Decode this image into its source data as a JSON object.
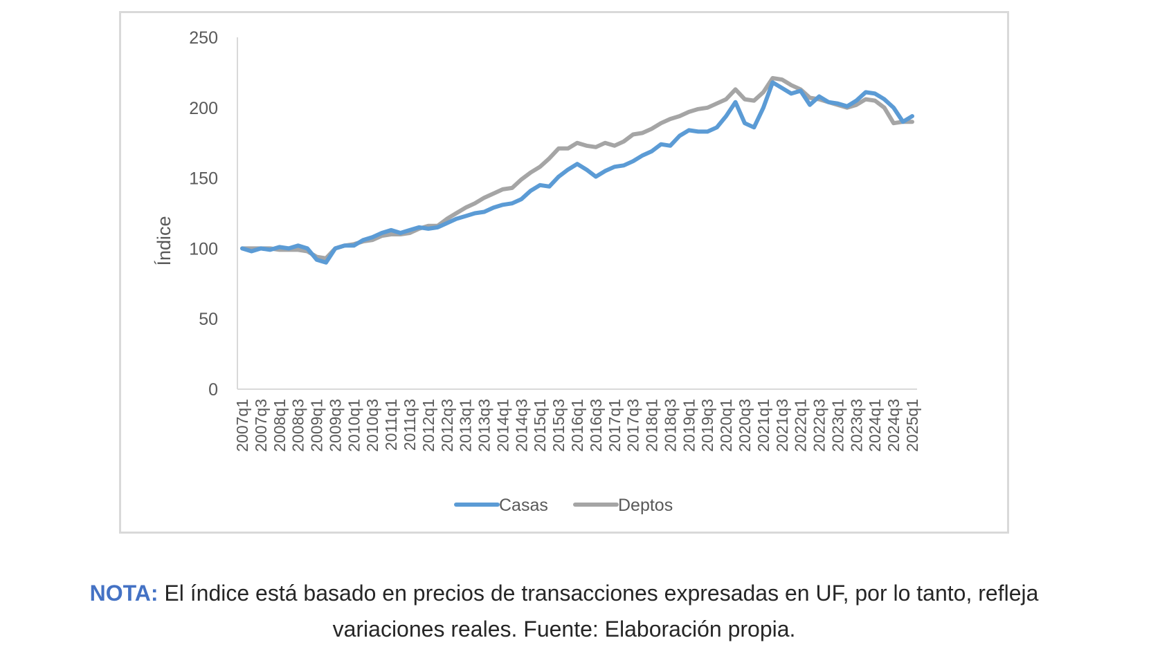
{
  "chart_data": {
    "type": "line",
    "title": "",
    "xlabel": "",
    "ylabel": "Índice",
    "ylim": [
      0,
      250
    ],
    "yticks": [
      "0",
      "50",
      "100",
      "150",
      "200",
      "250"
    ],
    "grid": false,
    "legend_position": "bottom",
    "x": [
      "2007q1",
      "2007q2",
      "2007q3",
      "2007q4",
      "2008q1",
      "2008q2",
      "2008q3",
      "2008q4",
      "2009q1",
      "2009q2",
      "2009q3",
      "2009q4",
      "2010q1",
      "2010q2",
      "2010q3",
      "2010q4",
      "2011q1",
      "2011q2",
      "2011q3",
      "2011q4",
      "2012q1",
      "2012q2",
      "2012q3",
      "2012q4",
      "2013q1",
      "2013q2",
      "2013q3",
      "2013q4",
      "2014q1",
      "2014q2",
      "2014q3",
      "2014q4",
      "2015q1",
      "2015q2",
      "2015q3",
      "2015q4",
      "2016q1",
      "2016q2",
      "2016q3",
      "2016q4",
      "2017q1",
      "2017q2",
      "2017q3",
      "2017q4",
      "2018q1",
      "2018q2",
      "2018q3",
      "2018q4",
      "2019q1",
      "2019q2",
      "2019q3",
      "2019q4",
      "2020q1",
      "2020q2",
      "2020q3",
      "2020q4",
      "2021q1",
      "2021q2",
      "2021q3",
      "2021q4",
      "2022q1",
      "2022q2",
      "2022q3",
      "2022q4",
      "2023q1",
      "2023q2",
      "2023q3",
      "2023q4",
      "2024q1",
      "2024q2",
      "2024q3",
      "2024q4",
      "2025q1"
    ],
    "x_tick_labels": [
      "2007q1",
      "2007q3",
      "2008q1",
      "2008q3",
      "2009q1",
      "2009q3",
      "2010q1",
      "2010q3",
      "2011q1",
      "2011q3",
      "2012q1",
      "2012q3",
      "2013q1",
      "2013q3",
      "2014q1",
      "2014q3",
      "2015q1",
      "2015q3",
      "2016q1",
      "2016q3",
      "2017q1",
      "2017q3",
      "2018q1",
      "2018q3",
      "2019q1",
      "2019q3",
      "2020q1",
      "2020q3",
      "2021q1",
      "2021q3",
      "2022q1",
      "2022q3",
      "2023q1",
      "2023q3",
      "2024q1",
      "2024q3",
      "2025q1"
    ],
    "series": [
      {
        "name": "Casas",
        "color": "#5b9bd5",
        "values": [
          100,
          98,
          100,
          99,
          101,
          100,
          102,
          100,
          92,
          90,
          100,
          102,
          102,
          106,
          108,
          111,
          113,
          111,
          113,
          115,
          114,
          115,
          118,
          121,
          123,
          125,
          126,
          129,
          131,
          132,
          135,
          141,
          145,
          144,
          151,
          156,
          160,
          156,
          151,
          155,
          158,
          159,
          162,
          166,
          169,
          174,
          173,
          180,
          184,
          183,
          183,
          186,
          194,
          204,
          189,
          186,
          200,
          218,
          214,
          210,
          212,
          202,
          208,
          204,
          203,
          201,
          205,
          211,
          210,
          206,
          200,
          190,
          194
        ]
      },
      {
        "name": "Deptos",
        "color": "#a5a5a5",
        "values": [
          100,
          100,
          100,
          100,
          99,
          99,
          99,
          98,
          94,
          93,
          100,
          102,
          103,
          105,
          106,
          109,
          110,
          110,
          111,
          114,
          116,
          116,
          121,
          125,
          129,
          132,
          136,
          139,
          142,
          143,
          149,
          154,
          158,
          164,
          171,
          171,
          175,
          173,
          172,
          175,
          173,
          176,
          181,
          182,
          185,
          189,
          192,
          194,
          197,
          199,
          200,
          203,
          206,
          213,
          206,
          205,
          211,
          221,
          220,
          216,
          213,
          207,
          206,
          204,
          202,
          200,
          202,
          206,
          205,
          200,
          189,
          190,
          190
        ]
      }
    ]
  },
  "caption": {
    "lead": "NOTA:",
    "text": " El índice está basado en precios de transacciones expresadas en UF, por lo tanto, refleja variaciones reales. Fuente: Elaboración propia."
  }
}
